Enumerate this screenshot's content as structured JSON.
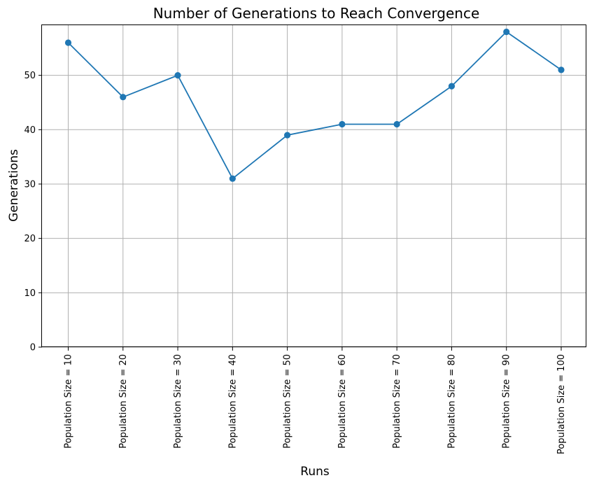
{
  "chart_data": {
    "type": "line",
    "title": "Number of Generations to Reach Convergence",
    "xlabel": "Runs",
    "ylabel": "Generations",
    "categories": [
      "Population Size = 10",
      "Population Size = 20",
      "Population Size = 30",
      "Population Size = 40",
      "Population Size = 50",
      "Population Size = 60",
      "Population Size = 70",
      "Population Size = 80",
      "Population Size = 90",
      "Population Size = 100"
    ],
    "series": [
      {
        "values": [
          56,
          46,
          50,
          31,
          39,
          41,
          41,
          48,
          58,
          51
        ],
        "color": "#1f77b4",
        "marker": "circle"
      }
    ],
    "ylim": [
      0,
      59.35
    ],
    "yticks": [
      0,
      10,
      20,
      30,
      40,
      50
    ],
    "grid": true,
    "legend": "none"
  }
}
